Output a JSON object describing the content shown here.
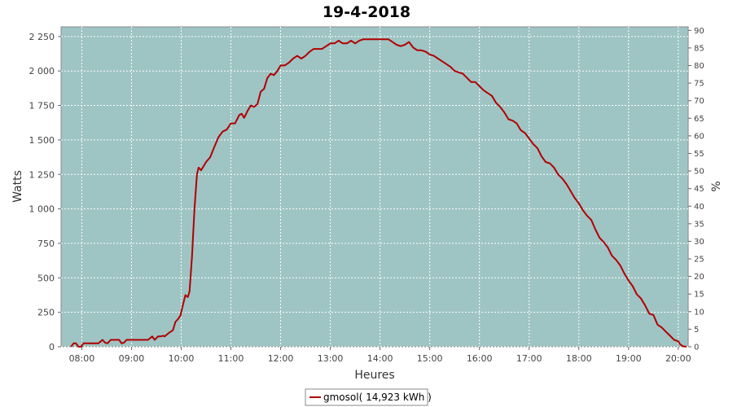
{
  "chart_data": {
    "type": "line",
    "title": "19-4-2018",
    "xlabel": "Heures",
    "ylabel": "Watts",
    "y2label": "%",
    "x_ticks": [
      "08:00",
      "09:00",
      "10:00",
      "11:00",
      "12:00",
      "13:00",
      "14:00",
      "15:00",
      "16:00",
      "17:00",
      "18:00",
      "19:00",
      "20:00"
    ],
    "y_ticks": [
      "0",
      "250",
      "500",
      "750",
      "1 000",
      "1 250",
      "1 500",
      "1 750",
      "2 000",
      "2 250"
    ],
    "y2_ticks": [
      "0",
      "5",
      "10",
      "15",
      "20",
      "25",
      "30",
      "35",
      "40",
      "45",
      "50",
      "55",
      "60",
      "65",
      "70",
      "75",
      "80",
      "85",
      "90"
    ],
    "xlim": [
      "07:35",
      "20:12"
    ],
    "ylim": [
      0,
      2320
    ],
    "y2lim": [
      0,
      91
    ],
    "grid": true,
    "plot_background": "#9fc4c4",
    "legend_position": "bottom-center",
    "series": [
      {
        "name": "gmosol( 14,923 kWh )",
        "color": "#b00000",
        "points": [
          [
            "07:47",
            0
          ],
          [
            "07:50",
            25
          ],
          [
            "07:53",
            25
          ],
          [
            "07:56",
            0
          ],
          [
            "07:59",
            0
          ],
          [
            "08:02",
            25
          ],
          [
            "08:05",
            25
          ],
          [
            "08:10",
            25
          ],
          [
            "08:15",
            25
          ],
          [
            "08:20",
            25
          ],
          [
            "08:25",
            50
          ],
          [
            "08:28",
            30
          ],
          [
            "08:31",
            25
          ],
          [
            "08:35",
            50
          ],
          [
            "08:40",
            50
          ],
          [
            "08:45",
            50
          ],
          [
            "08:48",
            25
          ],
          [
            "08:51",
            30
          ],
          [
            "08:54",
            50
          ],
          [
            "09:00",
            50
          ],
          [
            "09:10",
            50
          ],
          [
            "09:20",
            50
          ],
          [
            "09:25",
            75
          ],
          [
            "09:28",
            50
          ],
          [
            "09:32",
            75
          ],
          [
            "09:35",
            75
          ],
          [
            "09:38",
            80
          ],
          [
            "09:40",
            75
          ],
          [
            "09:45",
            100
          ],
          [
            "09:50",
            120
          ],
          [
            "09:53",
            180
          ],
          [
            "09:56",
            200
          ],
          [
            "09:59",
            225
          ],
          [
            "10:02",
            300
          ],
          [
            "10:05",
            375
          ],
          [
            "10:08",
            360
          ],
          [
            "10:10",
            400
          ],
          [
            "10:13",
            650
          ],
          [
            "10:16",
            1000
          ],
          [
            "10:19",
            1250
          ],
          [
            "10:21",
            1300
          ],
          [
            "10:24",
            1280
          ],
          [
            "10:27",
            1310
          ],
          [
            "10:30",
            1340
          ],
          [
            "10:35",
            1375
          ],
          [
            "10:40",
            1450
          ],
          [
            "10:45",
            1520
          ],
          [
            "10:50",
            1560
          ],
          [
            "10:55",
            1575
          ],
          [
            "11:00",
            1620
          ],
          [
            "11:05",
            1620
          ],
          [
            "11:10",
            1680
          ],
          [
            "11:13",
            1690
          ],
          [
            "11:16",
            1660
          ],
          [
            "11:20",
            1710
          ],
          [
            "11:24",
            1750
          ],
          [
            "11:28",
            1740
          ],
          [
            "11:32",
            1760
          ],
          [
            "11:36",
            1850
          ],
          [
            "11:40",
            1870
          ],
          [
            "11:44",
            1950
          ],
          [
            "11:48",
            1980
          ],
          [
            "11:52",
            1970
          ],
          [
            "11:56",
            2000
          ],
          [
            "12:00",
            2040
          ],
          [
            "12:05",
            2040
          ],
          [
            "12:10",
            2060
          ],
          [
            "12:15",
            2090
          ],
          [
            "12:20",
            2110
          ],
          [
            "12:25",
            2090
          ],
          [
            "12:30",
            2110
          ],
          [
            "12:35",
            2140
          ],
          [
            "12:40",
            2160
          ],
          [
            "12:45",
            2160
          ],
          [
            "12:50",
            2160
          ],
          [
            "12:55",
            2180
          ],
          [
            "13:00",
            2200
          ],
          [
            "13:05",
            2200
          ],
          [
            "13:10",
            2220
          ],
          [
            "13:15",
            2200
          ],
          [
            "13:20",
            2200
          ],
          [
            "13:25",
            2220
          ],
          [
            "13:30",
            2200
          ],
          [
            "13:35",
            2220
          ],
          [
            "13:40",
            2230
          ],
          [
            "13:50",
            2230
          ],
          [
            "14:00",
            2230
          ],
          [
            "14:10",
            2230
          ],
          [
            "14:15",
            2210
          ],
          [
            "14:20",
            2190
          ],
          [
            "14:25",
            2180
          ],
          [
            "14:30",
            2190
          ],
          [
            "14:35",
            2210
          ],
          [
            "14:40",
            2170
          ],
          [
            "14:45",
            2150
          ],
          [
            "14:50",
            2150
          ],
          [
            "14:55",
            2140
          ],
          [
            "15:00",
            2120
          ],
          [
            "15:05",
            2110
          ],
          [
            "15:10",
            2090
          ],
          [
            "15:15",
            2070
          ],
          [
            "15:20",
            2050
          ],
          [
            "15:25",
            2030
          ],
          [
            "15:30",
            2000
          ],
          [
            "15:35",
            1990
          ],
          [
            "15:40",
            1980
          ],
          [
            "15:45",
            1950
          ],
          [
            "15:50",
            1920
          ],
          [
            "15:55",
            1920
          ],
          [
            "16:00",
            1890
          ],
          [
            "16:05",
            1860
          ],
          [
            "16:10",
            1840
          ],
          [
            "16:15",
            1820
          ],
          [
            "16:20",
            1770
          ],
          [
            "16:25",
            1740
          ],
          [
            "16:30",
            1700
          ],
          [
            "16:35",
            1650
          ],
          [
            "16:40",
            1640
          ],
          [
            "16:45",
            1620
          ],
          [
            "16:50",
            1570
          ],
          [
            "16:55",
            1550
          ],
          [
            "17:00",
            1510
          ],
          [
            "17:05",
            1470
          ],
          [
            "17:10",
            1440
          ],
          [
            "17:15",
            1380
          ],
          [
            "17:20",
            1340
          ],
          [
            "17:25",
            1330
          ],
          [
            "17:30",
            1300
          ],
          [
            "17:35",
            1250
          ],
          [
            "17:40",
            1220
          ],
          [
            "17:45",
            1180
          ],
          [
            "17:50",
            1130
          ],
          [
            "17:55",
            1080
          ],
          [
            "18:00",
            1040
          ],
          [
            "18:05",
            990
          ],
          [
            "18:10",
            950
          ],
          [
            "18:15",
            920
          ],
          [
            "18:20",
            850
          ],
          [
            "18:25",
            790
          ],
          [
            "18:30",
            760
          ],
          [
            "18:35",
            720
          ],
          [
            "18:40",
            660
          ],
          [
            "18:45",
            630
          ],
          [
            "18:50",
            590
          ],
          [
            "18:55",
            530
          ],
          [
            "19:00",
            480
          ],
          [
            "19:05",
            440
          ],
          [
            "19:10",
            380
          ],
          [
            "19:15",
            350
          ],
          [
            "19:20",
            300
          ],
          [
            "19:25",
            240
          ],
          [
            "19:30",
            230
          ],
          [
            "19:35",
            160
          ],
          [
            "19:40",
            140
          ],
          [
            "19:45",
            110
          ],
          [
            "19:50",
            80
          ],
          [
            "19:55",
            50
          ],
          [
            "20:00",
            40
          ],
          [
            "20:02",
            20
          ],
          [
            "20:05",
            5
          ],
          [
            "20:10",
            0
          ]
        ]
      }
    ]
  }
}
